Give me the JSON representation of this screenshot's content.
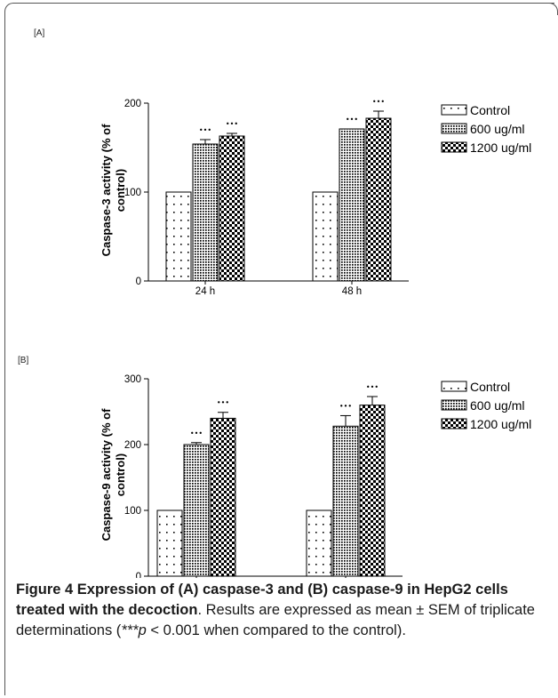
{
  "chart_data": [
    {
      "type": "bar",
      "panel_label": "[A]",
      "ylabel": "Caspase-3 activity (% of control)",
      "ylabel_lines": [
        "Caspase-3 activity (% of",
        "control)"
      ],
      "categories": [
        "24 h",
        "48 h"
      ],
      "ylim": [
        0,
        200
      ],
      "yticks": [
        0,
        100,
        200
      ],
      "series": [
        {
          "name": "Control",
          "values": [
            100,
            100
          ],
          "errors": [
            0,
            0
          ],
          "significance": [
            "",
            ""
          ],
          "pattern": "sparse-dots"
        },
        {
          "name": "600 ug/ml",
          "values": [
            154,
            171
          ],
          "errors": [
            5,
            0
          ],
          "significance": [
            "•••",
            "•••"
          ],
          "pattern": "dense-dots"
        },
        {
          "name": "1200 ug/ml",
          "values": [
            163,
            183
          ],
          "errors": [
            3,
            8
          ],
          "significance": [
            "•••",
            "•••"
          ],
          "pattern": "checker"
        }
      ],
      "legend_position": "right"
    },
    {
      "type": "bar",
      "panel_label": "[B]",
      "ylabel": "Caspase-9 activity (% of control)",
      "ylabel_lines": [
        "Caspase-9 activity (% of",
        "control)"
      ],
      "categories": [
        "24 h",
        "48 h"
      ],
      "ylim": [
        0,
        300
      ],
      "yticks": [
        0,
        100,
        200,
        300
      ],
      "series": [
        {
          "name": "Control",
          "values": [
            100,
            100
          ],
          "errors": [
            0,
            0
          ],
          "significance": [
            "",
            ""
          ],
          "pattern": "sparse-dots"
        },
        {
          "name": "600 ug/ml",
          "values": [
            200,
            228
          ],
          "errors": [
            3,
            16
          ],
          "significance": [
            "•••",
            "•••"
          ],
          "pattern": "dense-dots"
        },
        {
          "name": "1200 ug/ml",
          "values": [
            240,
            260
          ],
          "errors": [
            9,
            13
          ],
          "significance": [
            "•••",
            "•••"
          ],
          "pattern": "checker"
        }
      ],
      "legend_position": "right"
    }
  ],
  "caption": {
    "bold": "Figure 4 Expression of (A) caspase-3 and (B) caspase-9 in HepG2 cells treated with the decoction",
    "pre_italic": ". Results are expressed as mean ± SEM of triplicate determinations (",
    "italic": "***p",
    "post_italic": " < 0.001 when compared to the control)."
  }
}
